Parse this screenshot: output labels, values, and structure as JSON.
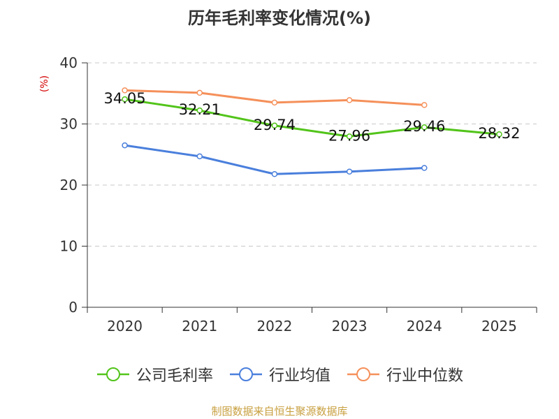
{
  "chart_data": {
    "type": "line",
    "title": "历年毛利率变化情况(%)",
    "ylabel": "(%)",
    "xlabel": "",
    "categories": [
      "2020",
      "2021",
      "2022",
      "2023",
      "2024",
      "2025"
    ],
    "ylim": [
      0,
      40
    ],
    "yticks": [
      0,
      10,
      20,
      30,
      40
    ],
    "grid": true,
    "legend_position": "bottom",
    "series": [
      {
        "name": "公司毛利率",
        "color": "#52c41a",
        "values": [
          34.05,
          32.21,
          29.74,
          27.96,
          29.46,
          28.32
        ],
        "labels": [
          "34.05",
          "32.21",
          "29.74",
          "27.96",
          "29.46",
          "28.32"
        ]
      },
      {
        "name": "行业均值",
        "color": "#4a7fdc",
        "values": [
          26.5,
          24.7,
          21.8,
          22.2,
          22.8,
          null
        ]
      },
      {
        "name": "行业中位数",
        "color": "#f5905a",
        "values": [
          35.5,
          35.1,
          33.5,
          33.9,
          33.1,
          null
        ]
      }
    ]
  },
  "source": "制图数据来自恒生聚源数据库"
}
